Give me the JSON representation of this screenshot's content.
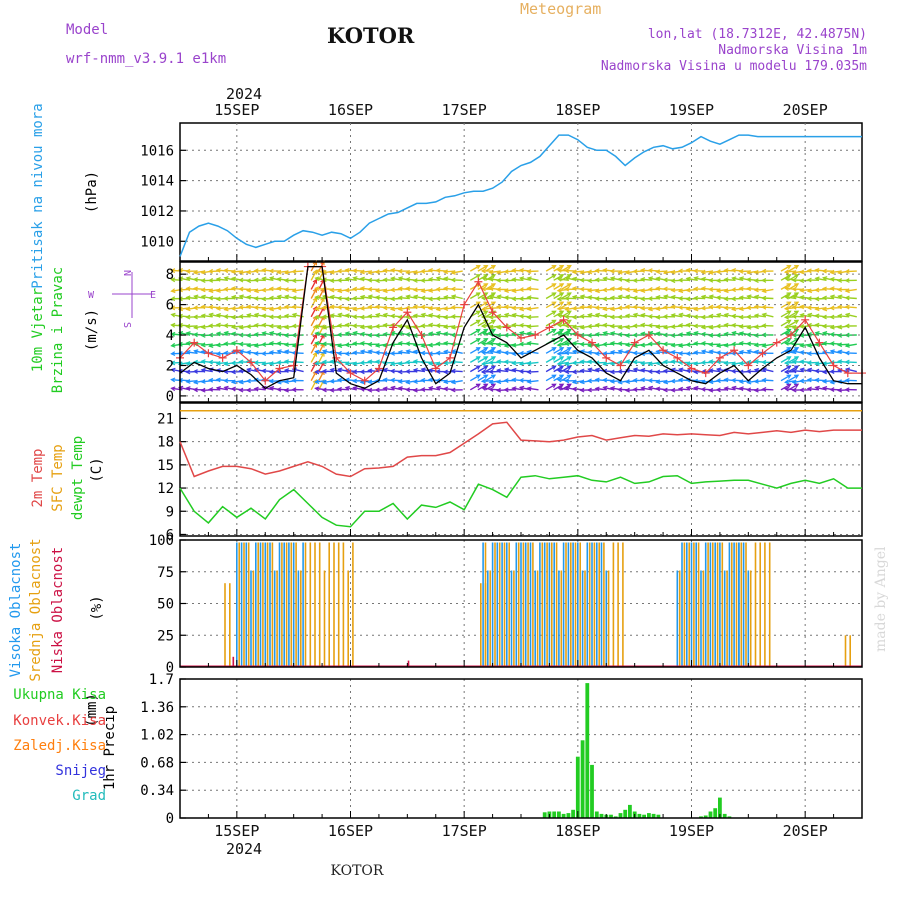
{
  "header": {
    "model_label": "Model",
    "model_name": "wrf-nmm_v3.9.1 e1km",
    "station": "KOTOR",
    "product": "Meteogram",
    "lonlat": "lon,lat (18.7312E, 42.4875N)",
    "elevation": "Nadmorska Visina 1m",
    "model_elevation": "Nadmorska Visina u modelu 179.035m",
    "watermark": "made by Angel",
    "footer_station": "KOTOR"
  },
  "colors": {
    "pressure": "#2aa0e8",
    "wind_speed": "#000000",
    "wind_gust": "#e84040",
    "temp2m": "#e04848",
    "dewpoint": "#22cc22",
    "sfc_temp": "#e6a010",
    "cloud_high": "#2299ee",
    "cloud_mid": "#e6a010",
    "cloud_low": "#cc1144",
    "precip_total": "#22cc22",
    "precip_conv": "#e84040",
    "precip_frozen": "#ff7f0e",
    "snow": "#3333dd",
    "graupel": "#22bbbb"
  },
  "time_axis": {
    "year": "2024",
    "days": [
      "15SEP",
      "16SEP",
      "17SEP",
      "18SEP",
      "19SEP",
      "20SEP"
    ]
  },
  "chart_data": [
    {
      "type": "line",
      "panel": "pressure",
      "ylabel": "Pritisak na nivou mora",
      "unit": "(hPa)",
      "x_hours": [
        0,
        2,
        4,
        6,
        8,
        10,
        12,
        14,
        16,
        18,
        20,
        22,
        24,
        26,
        28,
        30,
        32,
        34,
        36,
        38,
        40,
        42,
        44,
        46,
        48,
        50,
        52,
        54,
        56,
        58,
        60,
        62,
        64,
        66,
        68,
        70,
        72,
        74,
        76,
        78,
        80,
        82,
        84,
        86,
        88,
        90,
        92,
        94,
        96,
        98,
        100,
        102,
        104,
        106,
        108,
        110,
        112,
        114,
        116,
        118,
        120,
        122,
        124,
        126,
        128,
        130,
        132,
        134,
        136,
        138,
        140,
        142,
        144
      ],
      "values": [
        1009.0,
        1010.6,
        1011.0,
        1011.2,
        1011.0,
        1010.7,
        1010.2,
        1009.8,
        1009.6,
        1009.8,
        1010.0,
        1010.0,
        1010.4,
        1010.7,
        1010.6,
        1010.4,
        1010.6,
        1010.5,
        1010.2,
        1010.6,
        1011.2,
        1011.5,
        1011.8,
        1011.9,
        1012.2,
        1012.5,
        1012.5,
        1012.6,
        1012.9,
        1013.0,
        1013.2,
        1013.3,
        1013.3,
        1013.5,
        1013.9,
        1014.6,
        1015.0,
        1015.2,
        1015.6,
        1016.3,
        1017.0,
        1017.0,
        1016.7,
        1016.2,
        1016.0,
        1016.0,
        1015.6,
        1015.0,
        1015.5,
        1015.9,
        1016.2,
        1016.3,
        1016.1,
        1016.2,
        1016.5,
        1016.9,
        1016.6,
        1016.4,
        1016.7,
        1017.0,
        1017.0,
        1016.9,
        1016.9,
        1016.9,
        1016.9,
        1016.9,
        1016.9,
        1016.9,
        1016.9,
        1016.9,
        1016.9,
        1016.9,
        1016.9
      ],
      "yticks": [
        1010,
        1012,
        1014,
        1016
      ],
      "ylim": [
        1008.7,
        1017.8
      ],
      "grid": true
    },
    {
      "type": "line",
      "panel": "wind",
      "ylabel": [
        "10m Vjetar",
        "Brzina i Pravac"
      ],
      "unit": "(m/s)",
      "compass": {
        "n": "N",
        "s": "S",
        "w": "W",
        "e": "E"
      },
      "x_hours": [
        0,
        3,
        6,
        9,
        12,
        15,
        18,
        21,
        24,
        27,
        30,
        33,
        36,
        39,
        42,
        45,
        48,
        51,
        54,
        57,
        60,
        63,
        66,
        69,
        72,
        75,
        78,
        81,
        84,
        87,
        90,
        93,
        96,
        99,
        102,
        105,
        108,
        111,
        114,
        117,
        120,
        123,
        126,
        129,
        132,
        135,
        138,
        141,
        144
      ],
      "speed": [
        1.5,
        2.2,
        1.8,
        1.6,
        2.0,
        1.4,
        0.5,
        1.0,
        1.2,
        8.5,
        8.5,
        1.5,
        0.8,
        0.5,
        1.0,
        3.5,
        5.0,
        2.5,
        0.8,
        1.5,
        4.5,
        6.0,
        4.0,
        3.5,
        2.5,
        3.0,
        3.5,
        4.0,
        3.0,
        2.5,
        1.5,
        1.0,
        2.5,
        3.0,
        2.0,
        1.5,
        1.0,
        0.8,
        1.5,
        2.0,
        1.0,
        1.8,
        2.5,
        3.0,
        4.5,
        2.5,
        1.0,
        0.8,
        0.8
      ],
      "gust": [
        2.5,
        3.5,
        2.8,
        2.5,
        3.0,
        2.2,
        1.0,
        1.8,
        2.0,
        8.5,
        8.5,
        2.5,
        1.5,
        1.0,
        1.8,
        4.5,
        5.5,
        4.0,
        1.8,
        2.5,
        6.0,
        7.5,
        5.5,
        4.5,
        3.8,
        4.0,
        4.5,
        5.0,
        4.0,
        3.5,
        2.5,
        2.0,
        3.5,
        4.0,
        3.0,
        2.5,
        1.8,
        1.5,
        2.5,
        3.0,
        2.0,
        2.8,
        3.5,
        4.0,
        5.0,
        3.5,
        2.0,
        1.5,
        1.5
      ],
      "yticks": [
        0,
        2,
        4,
        6,
        8
      ],
      "ylim": [
        -0.4,
        8.8
      ],
      "grid": true
    },
    {
      "type": "line",
      "panel": "temperature",
      "ylabel": [
        "2m Temp",
        "SFC Temp",
        "dewpt Temp"
      ],
      "unit": "(C)",
      "x_hours": [
        0,
        3,
        6,
        9,
        12,
        15,
        18,
        21,
        24,
        27,
        30,
        33,
        36,
        39,
        42,
        45,
        48,
        51,
        54,
        57,
        60,
        63,
        66,
        69,
        72,
        75,
        78,
        81,
        84,
        87,
        90,
        93,
        96,
        99,
        102,
        105,
        108,
        111,
        114,
        117,
        120,
        123,
        126,
        129,
        132,
        135,
        138,
        141,
        144
      ],
      "temp2m": [
        18.0,
        13.5,
        14.2,
        14.8,
        14.8,
        14.5,
        13.8,
        14.2,
        14.8,
        15.4,
        14.8,
        13.8,
        13.5,
        14.5,
        14.6,
        14.8,
        16.0,
        16.2,
        16.2,
        16.6,
        17.8,
        19.0,
        20.3,
        20.5,
        18.2,
        18.1,
        18.0,
        18.2,
        18.6,
        18.8,
        18.2,
        18.5,
        18.8,
        18.7,
        19.0,
        18.9,
        19.0,
        18.9,
        18.8,
        19.2,
        19.0,
        19.2,
        19.4,
        19.2,
        19.5,
        19.3,
        19.5,
        19.5,
        19.5
      ],
      "dewpoint": [
        12.0,
        9.0,
        7.5,
        9.6,
        8.2,
        9.4,
        8.0,
        10.5,
        11.8,
        10.0,
        8.2,
        7.2,
        7.0,
        9.0,
        9.0,
        10.0,
        8.0,
        9.8,
        9.5,
        10.2,
        9.2,
        12.5,
        11.8,
        10.8,
        13.4,
        13.6,
        13.2,
        13.4,
        13.6,
        13.0,
        12.8,
        13.4,
        12.6,
        12.8,
        13.5,
        13.6,
        12.6,
        12.8,
        12.9,
        13.0,
        13.0,
        12.5,
        12.0,
        12.6,
        13.0,
        12.6,
        13.2,
        12.0,
        12.0
      ],
      "sfc_temp": [
        22,
        22,
        22,
        22,
        22,
        22,
        22,
        22,
        22,
        22,
        22,
        22,
        22,
        22,
        22,
        22,
        22,
        22,
        22,
        22,
        22,
        22,
        22,
        22,
        22,
        22,
        22,
        22,
        22,
        22,
        22,
        22,
        22,
        22,
        22,
        22,
        22,
        22,
        22,
        22,
        22,
        22,
        22,
        22,
        22,
        22,
        22,
        22,
        22
      ],
      "yticks": [
        6,
        9,
        12,
        15,
        18,
        21
      ],
      "ylim": [
        5.8,
        23.0
      ],
      "grid": true
    },
    {
      "type": "bar",
      "panel": "cloud",
      "ylabel": [
        "Visoka Oblacnost",
        "Srednja Oblacnost",
        "Niska Oblacnost"
      ],
      "unit": "(%)",
      "note": "cloud cover bands: [start_hour, end_hour, percent]",
      "high": [
        [
          12,
          26,
          98
        ],
        [
          64,
          90,
          98
        ],
        [
          105,
          118,
          98
        ],
        [
          118,
          120,
          98
        ]
      ],
      "mid": [
        [
          9,
          10,
          66
        ],
        [
          12,
          36,
          98
        ],
        [
          63,
          64,
          66
        ],
        [
          64,
          93,
          98
        ],
        [
          105,
          124,
          98
        ],
        [
          140,
          141,
          25
        ]
      ],
      "low": [
        [
          11,
          11,
          8
        ],
        [
          48,
          48,
          5
        ]
      ],
      "yticks": [
        0,
        25,
        50,
        75,
        100
      ],
      "ylim": [
        0,
        100
      ],
      "grid": true
    },
    {
      "type": "bar",
      "panel": "precip",
      "ylabel": "1hr Precip",
      "unit": "(mm)",
      "legend": [
        "Ukupna Kisa",
        "Konvek.Kisa",
        "Zaledj.Kisa",
        "Snijeg",
        "Grad"
      ],
      "x_hours": [
        77,
        78,
        79,
        80,
        81,
        82,
        83,
        84,
        85,
        86,
        87,
        88,
        89,
        90,
        91,
        92,
        93,
        94,
        95,
        96,
        97,
        98,
        99,
        100,
        101,
        110,
        111,
        112,
        113,
        114,
        115,
        116
      ],
      "values": [
        0.07,
        0.08,
        0.08,
        0.08,
        0.05,
        0.06,
        0.1,
        0.75,
        0.95,
        1.65,
        0.65,
        0.08,
        0.05,
        0.04,
        0.04,
        0.02,
        0.06,
        0.1,
        0.16,
        0.08,
        0.05,
        0.04,
        0.06,
        0.05,
        0.04,
        0.02,
        0.03,
        0.08,
        0.12,
        0.25,
        0.05,
        0.02
      ],
      "yticks": [
        0,
        0.34,
        0.68,
        1.02,
        1.36,
        1.7
      ],
      "ylim": [
        0,
        1.7
      ],
      "grid": true
    }
  ]
}
